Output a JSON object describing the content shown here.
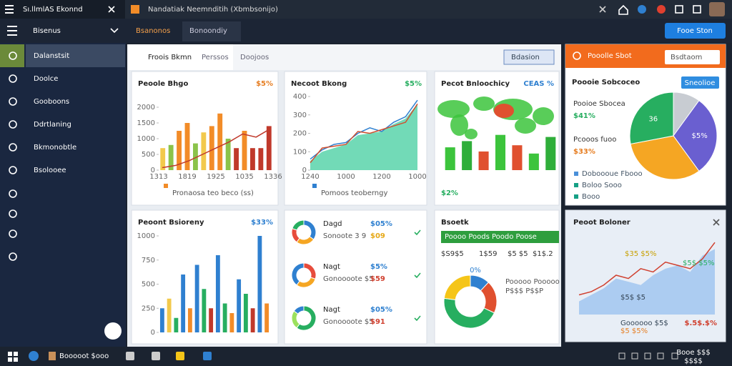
{
  "window": {
    "title": "Sı.llmlAS Ekonnd",
    "tab": "Nandatiak Neemnditih (Xbmbsonijo)"
  },
  "header": {
    "title": "Bisenus",
    "tabs": [
      "Bsanonos",
      "Bonoondiy"
    ],
    "button": "Fooe Ston"
  },
  "sidebar": {
    "items": [
      "Dalanstsit",
      "Doolce",
      "Gooboons",
      "Ddrtlaning",
      "Bkmonobtle",
      "Bsolooee"
    ]
  },
  "content": {
    "tabs": [
      "Froois Bkmn",
      "Perssos",
      "Doojoos"
    ],
    "dropdown": "Bdasion"
  },
  "cards": [
    {
      "title": "Peoole Bhgo",
      "badge": "$5%",
      "chart": {
        "type": "bar",
        "ylim": [
          0,
          2000
        ],
        "yticks": [
          0,
          500,
          1000,
          1500,
          2000
        ],
        "x_labels": [
          "1313",
          "1819",
          "1925",
          "1035",
          "1336"
        ],
        "values": [
          700,
          800,
          1250,
          1500,
          850,
          1200,
          1400,
          1800,
          1000,
          700,
          1250,
          700,
          700,
          1400
        ],
        "colors": [
          "#f2c94c",
          "#8bc34a",
          "#f28c28",
          "#f28c28",
          "#8bc34a",
          "#f2c94c",
          "#f28c28",
          "#f28c28",
          "#8bc34a",
          "#c0392b",
          "#f28c28",
          "#c0392b",
          "#c0392b",
          "#c0392b"
        ],
        "line": [
          80,
          150,
          300,
          500,
          700,
          900,
          1150,
          1050,
          1300
        ],
        "line_color": "#c0392b",
        "legend": "Pronaosa teo beco (ss)",
        "legend_color": "#f28c28"
      }
    },
    {
      "title": "Necoot Bkong",
      "badge": "$5%",
      "chart": {
        "type": "area",
        "ylim": [
          0,
          400
        ],
        "yticks": [
          0,
          100,
          200,
          300,
          400
        ],
        "x_labels": [
          "1240",
          "1000",
          "1200",
          "1000"
        ],
        "area": [
          50,
          100,
          120,
          140,
          190,
          200,
          210,
          250,
          280,
          360
        ],
        "area_color": "#4fd1a5",
        "series": [
          {
            "color": "#2f80d0",
            "values": [
              60,
              110,
              140,
              150,
              200,
              230,
              210,
              260,
              290,
              380
            ]
          },
          {
            "color": "#d0502f",
            "values": [
              40,
              120,
              130,
              140,
              210,
              200,
              220,
              240,
              260,
              360
            ]
          }
        ],
        "legend": "Pomoos teoberngy",
        "legend_color": "#2f80d0"
      }
    },
    {
      "title": "Pecot Bnloochicy",
      "badge": "CEAS %",
      "note": "$2%",
      "chart": {
        "type": "bar",
        "ylim": [
          0,
          100
        ],
        "values": [
          55,
          70,
          45,
          85,
          60,
          40,
          80
        ],
        "colors": [
          "#3cc43c",
          "#2fae3a",
          "#e0502f",
          "#3cc43c",
          "#e0502f",
          "#3cc43c",
          "#2fae3a"
        ]
      }
    },
    {
      "title": "Peoont Bsioreny",
      "badge": "$33%",
      "chart": {
        "type": "bar",
        "ylim": [
          0,
          1000
        ],
        "yticks": [
          0,
          250,
          500,
          750,
          1000
        ],
        "values": [
          250,
          350,
          150,
          600,
          250,
          700,
          450,
          250,
          800,
          300,
          200,
          550,
          400,
          250,
          1000,
          300
        ],
        "colors": [
          "#2f80d0",
          "#f2c94c",
          "#27ae60",
          "#2f80d0",
          "#f28c28",
          "#2f80d0",
          "#27ae60",
          "#c0392b",
          "#2f80d0",
          "#27ae60",
          "#f28c28",
          "#2f80d0",
          "#27ae60",
          "#c0392b",
          "#2f80d0",
          "#f28c28"
        ]
      }
    }
  ],
  "list": [
    {
      "label": "Dagd",
      "sub": "Sonoote 3 9",
      "pct": "$05%",
      "value": "$09",
      "value_color": "#e6a817",
      "donut": {
        "values": [
          35,
          25,
          20,
          20
        ],
        "colors": [
          "#2f80d0",
          "#f5a623",
          "#e74c3c",
          "#27ae60"
        ]
      }
    },
    {
      "label": "Nagt",
      "sub": "Gonoooote $5",
      "pct": "$5%",
      "value": "$59",
      "value_color": "#d0402f",
      "donut": {
        "values": [
          30,
          30,
          40
        ],
        "colors": [
          "#e74c3c",
          "#f5a623",
          "#2f80d0"
        ]
      }
    },
    {
      "label": "Nagt",
      "sub": "Gonoooote $5",
      "pct": "$05%",
      "value": "$91",
      "value_color": "#d0402f",
      "donut": {
        "values": [
          60,
          25,
          15
        ],
        "colors": [
          "#27ae60",
          "#9be15d",
          "#2f80d0"
        ]
      }
    }
  ],
  "stock": {
    "title": "Bsoetk",
    "bar": [
      "Poooo Poods",
      "Poodo Poose"
    ],
    "stats": [
      "$S9$5",
      "1$59",
      "$5 $5",
      "$1$.2"
    ],
    "pct": "0%",
    "notes": [
      "Pooooo Pooooo",
      "P$$$ P$$P"
    ],
    "donut": {
      "values": [
        12,
        20,
        45,
        23
      ],
      "colors": [
        "#2f80d0",
        "#e0502f",
        "#27ae60",
        "#f5c518"
      ]
    }
  },
  "panel": {
    "header": "Pooolle Sbot",
    "dropdown": "Bsdtaom",
    "title": "Poooie Sobcoceo",
    "button": "Sneolioe",
    "stats": [
      {
        "label": "Pooioe Sbocea",
        "value": "$41%",
        "color": "#27ae60"
      },
      {
        "label": "Pcooos fuoo",
        "value": "$33%",
        "color": "#e67e22"
      }
    ],
    "pie": {
      "values": [
        10,
        30,
        32,
        28
      ],
      "colors": [
        "#c8ccd2",
        "#6a5fd0",
        "#f5a623",
        "#27ae60"
      ],
      "labels": [
        null,
        "$5%",
        null,
        "36"
      ]
    },
    "legend": [
      {
        "label": "Doboooue Fbooo",
        "color": "#4a90d9"
      },
      {
        "label": "Boloo Sooo",
        "color": "#16a085"
      },
      {
        "label": "Booo",
        "color": "#16a085"
      }
    ]
  },
  "trend": {
    "title": "Peoot Boloner",
    "notes": [
      "$35 $5%",
      "$5$ $5%",
      "$5$ $5"
    ],
    "total": "$.5$.$%",
    "sub": [
      "Goooooo $5$",
      "$5 $5%"
    ],
    "chart": {
      "ylim": [
        0,
        120
      ],
      "area": [
        20,
        30,
        40,
        55,
        50,
        45,
        60,
        70,
        75,
        65,
        90,
        100
      ],
      "line": [
        30,
        35,
        45,
        60,
        55,
        70,
        65,
        80,
        75,
        70,
        85,
        110
      ],
      "area_color": "#9cc3f0",
      "line_color": "#d0402f"
    }
  },
  "taskbar": {
    "app": "Booooot $ooo",
    "clock": [
      "Booe $$$",
      "$$$$"
    ]
  }
}
